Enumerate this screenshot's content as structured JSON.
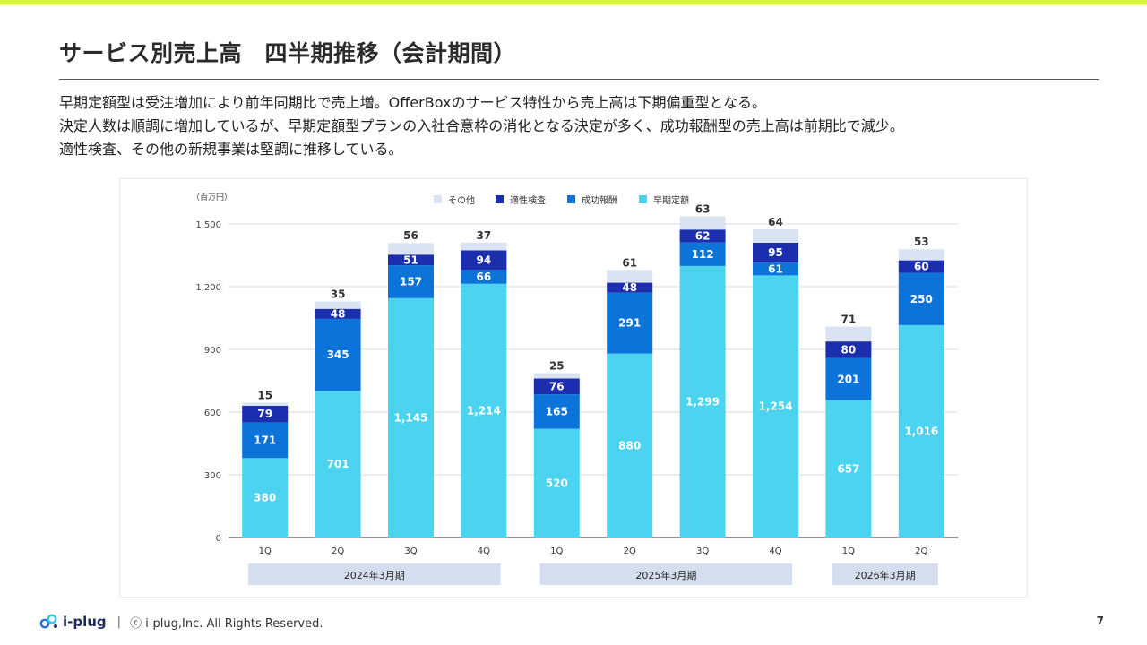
{
  "page": {
    "title": "サービス別売上高　四半期推移（会計期間）",
    "description": [
      "早期定額型は受注増加により前年同期比で売上増。OfferBoxのサービス特性から売上高は下期偏重型となる。",
      "決定人数は順調に増加しているが、早期定額型プランの入社合意枠の消化となる決定が多く、成功報酬型の売上高は前期比で減少。",
      "適性検査、その他の新規事業は堅調に推移している。"
    ],
    "footer": {
      "logo_text": "i-plug",
      "separator": "|",
      "copyright": "ⓒ i-plug,Inc. All Rights Reserved.",
      "page_number": "7"
    }
  },
  "colors": {
    "accent_bar": "#d4f53c",
    "早期定額": "#4cd3ef",
    "成功報酬": "#0c74d8",
    "適性検査": "#1b2fae",
    "その他": "#d9e3f2",
    "period_band": "#d5deee",
    "grid": "#d8d8d8"
  },
  "chart_data": {
    "type": "bar",
    "stacked": true,
    "unit_label": "（百万円）",
    "categories": [
      "1Q",
      "2Q",
      "3Q",
      "4Q",
      "1Q",
      "2Q",
      "3Q",
      "4Q",
      "1Q",
      "2Q"
    ],
    "groups": [
      {
        "label": "2024年3月期",
        "span": [
          0,
          3
        ]
      },
      {
        "label": "2025年3月期",
        "span": [
          4,
          7
        ]
      },
      {
        "label": "2026年3月期",
        "span": [
          8,
          9
        ]
      }
    ],
    "ylim": [
      0,
      1500
    ],
    "yticks": [
      0,
      300,
      600,
      900,
      1200,
      1500
    ],
    "ytick_labels": [
      "0",
      "300",
      "600",
      "900",
      "1,200",
      "1,500"
    ],
    "grid": true,
    "legend_position": "top-center",
    "series": [
      {
        "name": "早期定額",
        "key": "early",
        "values": [
          380,
          701,
          1145,
          1214,
          520,
          880,
          1299,
          1254,
          657,
          1016
        ],
        "labels": [
          "380",
          "701",
          "1,145",
          "1,214",
          "520",
          "880",
          "1,299",
          "1,254",
          "657",
          "1,016"
        ]
      },
      {
        "name": "成功報酬",
        "key": "success",
        "values": [
          171,
          345,
          157,
          66,
          165,
          291,
          112,
          61,
          201,
          250
        ],
        "labels": [
          "171",
          "345",
          "157",
          "66",
          "165",
          "291",
          "112",
          "61",
          "201",
          "250"
        ]
      },
      {
        "name": "適性検査",
        "key": "aptitude",
        "values": [
          79,
          48,
          51,
          94,
          76,
          48,
          62,
          95,
          80,
          60
        ],
        "labels": [
          "79",
          "48",
          "51",
          "94",
          "76",
          "48",
          "62",
          "95",
          "80",
          "60"
        ]
      },
      {
        "name": "その他",
        "key": "other",
        "values": [
          15,
          35,
          56,
          37,
          25,
          61,
          63,
          64,
          71,
          53
        ],
        "labels": [
          "15",
          "35",
          "56",
          "37",
          "25",
          "61",
          "63",
          "64",
          "71",
          "53"
        ]
      }
    ],
    "legend_order": [
      "その他",
      "適性検査",
      "成功報酬",
      "早期定額"
    ]
  }
}
